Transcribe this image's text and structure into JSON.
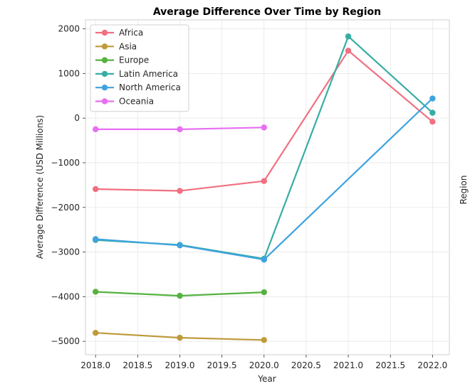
{
  "chart_data": {
    "type": "line",
    "title": "Average Difference Over Time by Region",
    "xlabel": "Year",
    "ylabel": "Average Difference (USD Millions)",
    "side_label": "Region",
    "xlim": [
      2017.88,
      2022.2
    ],
    "ylim": [
      -5300,
      2200
    ],
    "xticks": [
      2018.0,
      2018.5,
      2019.0,
      2019.5,
      2020.0,
      2020.5,
      2021.0,
      2021.5,
      2022.0
    ],
    "xtick_labels": [
      "2018.0",
      "2018.5",
      "2019.0",
      "2019.5",
      "2020.0",
      "2020.5",
      "2021.0",
      "2021.5",
      "2022.0"
    ],
    "yticks": [
      2000,
      1000,
      0,
      -1000,
      -2000,
      -3000,
      -4000,
      -5000
    ],
    "ytick_labels": [
      "2000",
      "1000",
      "0",
      "−1000",
      "−2000",
      "−3000",
      "−4000",
      "−5000"
    ],
    "grid": true,
    "legend_position": "top-left",
    "series": [
      {
        "name": "Africa",
        "color": "#f07080",
        "points": [
          [
            2018,
            -1590
          ],
          [
            2019,
            -1630
          ],
          [
            2020,
            -1410
          ],
          [
            2021,
            1510
          ],
          [
            2022,
            -80
          ]
        ]
      },
      {
        "name": "Asia",
        "color": "#bf9a3a",
        "points": [
          [
            2018,
            -4810
          ],
          [
            2019,
            -4920
          ],
          [
            2020,
            -4970
          ]
        ]
      },
      {
        "name": "Europe",
        "color": "#55b240",
        "points": [
          [
            2018,
            -3890
          ],
          [
            2019,
            -3980
          ],
          [
            2020,
            -3900
          ]
        ]
      },
      {
        "name": "Latin America",
        "color": "#37ada4",
        "points": [
          [
            2018,
            -2730
          ],
          [
            2019,
            -2840
          ],
          [
            2020,
            -3150
          ],
          [
            2021,
            1830
          ],
          [
            2022,
            120
          ]
        ]
      },
      {
        "name": "North America",
        "color": "#3ea3de",
        "points": [
          [
            2018,
            -2710
          ],
          [
            2019,
            -2850
          ],
          [
            2020,
            -3170
          ],
          [
            2022,
            440
          ]
        ]
      },
      {
        "name": "Oceania",
        "color": "#e76ff2",
        "points": [
          [
            2018,
            -250
          ],
          [
            2019,
            -250
          ],
          [
            2020,
            -210
          ]
        ]
      }
    ]
  }
}
